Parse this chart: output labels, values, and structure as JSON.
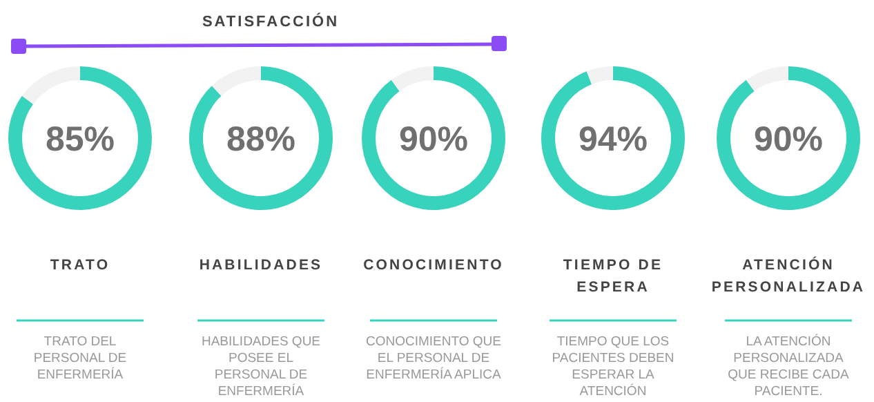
{
  "chart_data": [
    {
      "type": "other",
      "title": "SATISFACCIÓN"
    },
    {
      "type": "donut",
      "title": "TRATO",
      "subtitle": "TRATO DEL PERSONAL DE ENFERMERÍA",
      "categories": [
        null,
        null
      ],
      "values": [
        85,
        15
      ],
      "colors": [
        "#38d3bd",
        "#f2f2f2"
      ],
      "value_labels": [
        "85%",
        null
      ]
    },
    {
      "type": "donut",
      "title": "HABILIDADES",
      "subtitle": "HABILIDADES QUE POSEE EL PERSONAL DE ENFERMERÍA",
      "categories": [
        null,
        null
      ],
      "values": [
        88,
        12
      ],
      "colors": [
        "#38d3bd",
        "#f2f2f2"
      ],
      "value_labels": [
        "88%",
        null
      ]
    },
    {
      "type": "donut",
      "title": "CONOCIMIENTO",
      "subtitle": "CONOCIMIENTO QUE EL PERSONAL DE ENFERMERÍA APLICA",
      "categories": [
        null,
        null
      ],
      "values": [
        90,
        10
      ],
      "colors": [
        "#38d3bd",
        "#f2f2f2"
      ],
      "value_labels": [
        "90%",
        null
      ]
    },
    {
      "type": "donut",
      "title": "TIEMPO DE ESPERA",
      "subtitle": "TIEMPO QUE LOS PACIENTES DEBEN ESPERAR LA ATENCIÓN",
      "categories": [
        null,
        null
      ],
      "values": [
        94,
        6
      ],
      "colors": [
        "#38d3bd",
        "#f2f2f2"
      ],
      "value_labels": [
        "94%",
        null
      ]
    },
    {
      "type": "donut",
      "title": "ATENCIÓN PERSONALIZADA",
      "subtitle": "LA ATENCIÓN PERSONALIZADA QUE RECIBE CADA PACIENTE.",
      "categories": [
        null,
        null
      ],
      "values": [
        90,
        10
      ],
      "colors": [
        "#38d3bd",
        "#f2f2f2"
      ],
      "value_labels": [
        "90%",
        null
      ]
    }
  ]
}
